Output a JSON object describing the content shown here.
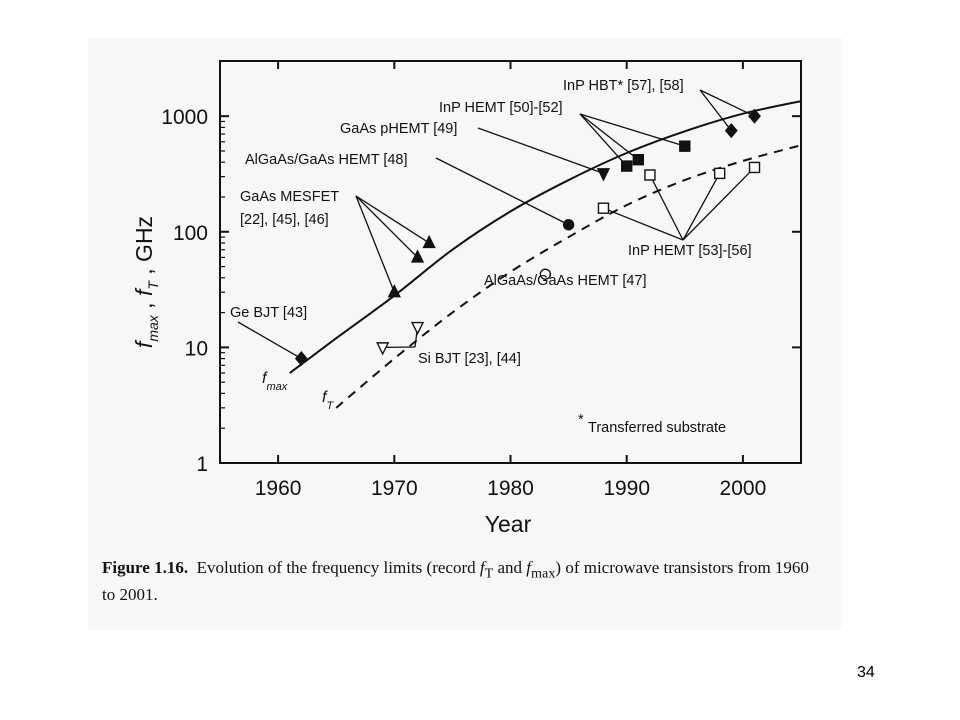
{
  "chart_data": {
    "type": "scatter",
    "title": "",
    "xlabel": "Year",
    "ylabel": "f_max , f_T , GHz",
    "xlim": [
      1955,
      2005
    ],
    "ylim": [
      1,
      3000
    ],
    "yscale": "log",
    "x_ticks": [
      1960,
      1970,
      1980,
      1990,
      2000
    ],
    "y_ticks": [
      {
        "value": 1,
        "label": "1"
      },
      {
        "value": 10,
        "label": "10"
      },
      {
        "value": 100,
        "label": "100"
      },
      {
        "value": 1000,
        "label": "1000"
      }
    ],
    "grid": false,
    "curves": [
      {
        "name": "f_max",
        "style": "solid",
        "x": [
          1961,
          1965,
          1970,
          1975,
          1980,
          1985,
          1990,
          1995,
          2000,
          2005
        ],
        "y": [
          6,
          12,
          28,
          70,
          150,
          280,
          480,
          740,
          1050,
          1350
        ]
      },
      {
        "name": "f_T",
        "style": "dashed",
        "x": [
          1965,
          1970,
          1975,
          1980,
          1985,
          1990,
          1995,
          2000,
          2005
        ],
        "y": [
          3,
          8,
          20,
          45,
          90,
          170,
          280,
          410,
          560
        ]
      }
    ],
    "points": [
      {
        "x": 1962,
        "y": 8,
        "marker": "diamond",
        "fill": "solid"
      },
      {
        "x": 1970,
        "y": 30,
        "marker": "triangle-up",
        "fill": "solid"
      },
      {
        "x": 1972,
        "y": 60,
        "marker": "triangle-up",
        "fill": "solid"
      },
      {
        "x": 1973,
        "y": 80,
        "marker": "triangle-up",
        "fill": "solid"
      },
      {
        "x": 1985,
        "y": 115,
        "marker": "circle",
        "fill": "solid"
      },
      {
        "x": 1983,
        "y": 43,
        "marker": "circle",
        "fill": "open"
      },
      {
        "x": 1969,
        "y": 10,
        "marker": "triangle-down",
        "fill": "open"
      },
      {
        "x": 1972,
        "y": 15,
        "marker": "triangle-down",
        "fill": "open"
      },
      {
        "x": 1988,
        "y": 320,
        "marker": "triangle-down",
        "fill": "solid"
      },
      {
        "x": 1990,
        "y": 370,
        "marker": "square",
        "fill": "solid"
      },
      {
        "x": 1991,
        "y": 420,
        "marker": "square",
        "fill": "solid"
      },
      {
        "x": 1995,
        "y": 550,
        "marker": "square",
        "fill": "solid"
      },
      {
        "x": 1988,
        "y": 160,
        "marker": "square",
        "fill": "open"
      },
      {
        "x": 1992,
        "y": 310,
        "marker": "square",
        "fill": "open"
      },
      {
        "x": 1998,
        "y": 320,
        "marker": "square",
        "fill": "open"
      },
      {
        "x": 2001,
        "y": 360,
        "marker": "square",
        "fill": "open"
      },
      {
        "x": 1999,
        "y": 750,
        "marker": "diamond",
        "fill": "solid"
      },
      {
        "x": 2001,
        "y": 1000,
        "marker": "diamond",
        "fill": "solid"
      }
    ],
    "annotations": [
      {
        "text": "InP HBT* [57], [58]",
        "points": [
          16,
          17
        ]
      },
      {
        "text": "InP HEMT [50]-[52]",
        "points": [
          9,
          10,
          11
        ]
      },
      {
        "text": "GaAs pHEMT [49]",
        "points": [
          8
        ]
      },
      {
        "text": "AlGaAs/GaAs HEMT [48]",
        "points": [
          4
        ]
      },
      {
        "text": "GaAs MESFET",
        "points": [
          1,
          2,
          3
        ]
      },
      {
        "text": "[22], [45], [46]",
        "points": []
      },
      {
        "text": "InP HEMT [53]-[56]",
        "points": [
          12,
          13,
          14,
          15
        ]
      },
      {
        "text": "AlGaAs/GaAs HEMT [47]",
        "points": [
          5
        ]
      },
      {
        "text": "Ge BJT [43]",
        "points": [
          0
        ]
      },
      {
        "text": "Si BJT [23], [44]",
        "points": [
          6,
          7
        ]
      },
      {
        "text": "Transferred substrate",
        "points": []
      }
    ],
    "curve_labels": {
      "fmax_main": "f",
      "fmax_sub": "max",
      "fT_main": "f",
      "fT_sub": "T",
      "footnote_star": "*"
    },
    "ylabel_parts": {
      "f1": "f",
      "sub1": "max",
      "sep1": " , ",
      "f2": "f",
      "sub2": "T",
      "rest": " , GHz"
    }
  },
  "caption": {
    "label": "Figure 1.16.",
    "text_a": "Evolution of the frequency limits (record ",
    "fT_f": "f",
    "fT_sub": "T",
    "and": " and ",
    "fmax_f": "f",
    "fmax_sub": "max",
    "text_b": ") of microwave transistors from 1960 to 2001."
  },
  "page_number": "34"
}
